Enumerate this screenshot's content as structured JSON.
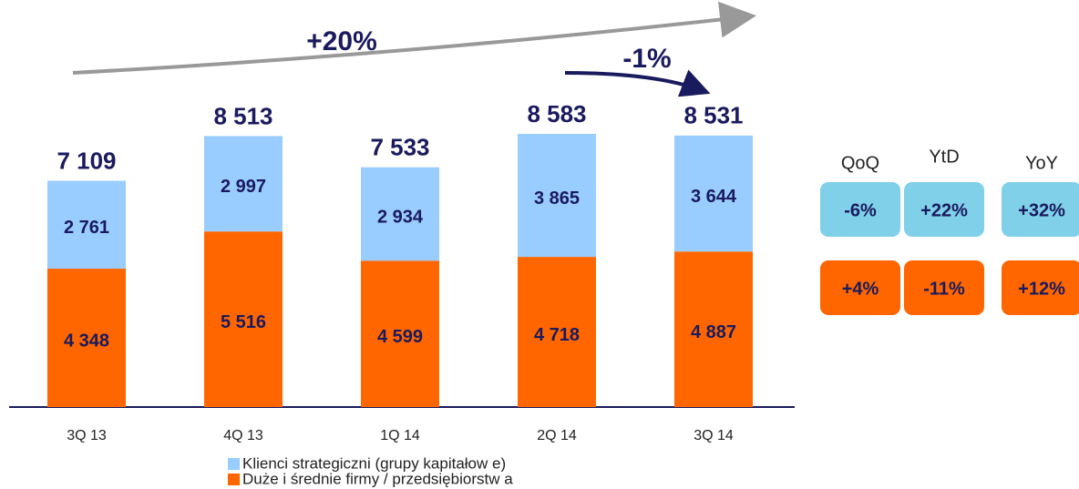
{
  "chart_data": {
    "type": "stacked_bar",
    "categories": [
      "3Q 13",
      "4Q 13",
      "1Q 14",
      "2Q 14",
      "3Q 14"
    ],
    "series": [
      {
        "name": "Duże i średnie firmy / przedsiębiorstw a",
        "color": "#ff6600",
        "values": [
          4348,
          5516,
          4599,
          4718,
          4887
        ],
        "value_labels": [
          "4 348",
          "5 516",
          "4 599",
          "4 718",
          "4 887"
        ]
      },
      {
        "name": "Klienci strategiczni (grupy kapitałow e)",
        "color": "#99ccff",
        "values": [
          2761,
          2997,
          2934,
          3865,
          3644
        ],
        "value_labels": [
          "2 761",
          "2 997",
          "2 934",
          "3 865",
          "3 644"
        ]
      }
    ],
    "totals": [
      7109,
      8513,
      7533,
      8583,
      8531
    ],
    "total_labels": [
      "7 109",
      "8 513",
      "7 533",
      "8 583",
      "8 531"
    ],
    "ylim": [
      0,
      10500
    ],
    "annotations": [
      "+20%",
      "-1%"
    ],
    "comparison": {
      "headers": [
        "QoQ",
        "YtD",
        "YoY"
      ],
      "rows": [
        {
          "color": "#7fd0e8",
          "cells": [
            "-6%",
            "+22%",
            "+32%"
          ]
        },
        {
          "color": "#ff6600",
          "cells": [
            "+4%",
            "-11%",
            "+12%"
          ]
        }
      ]
    }
  }
}
